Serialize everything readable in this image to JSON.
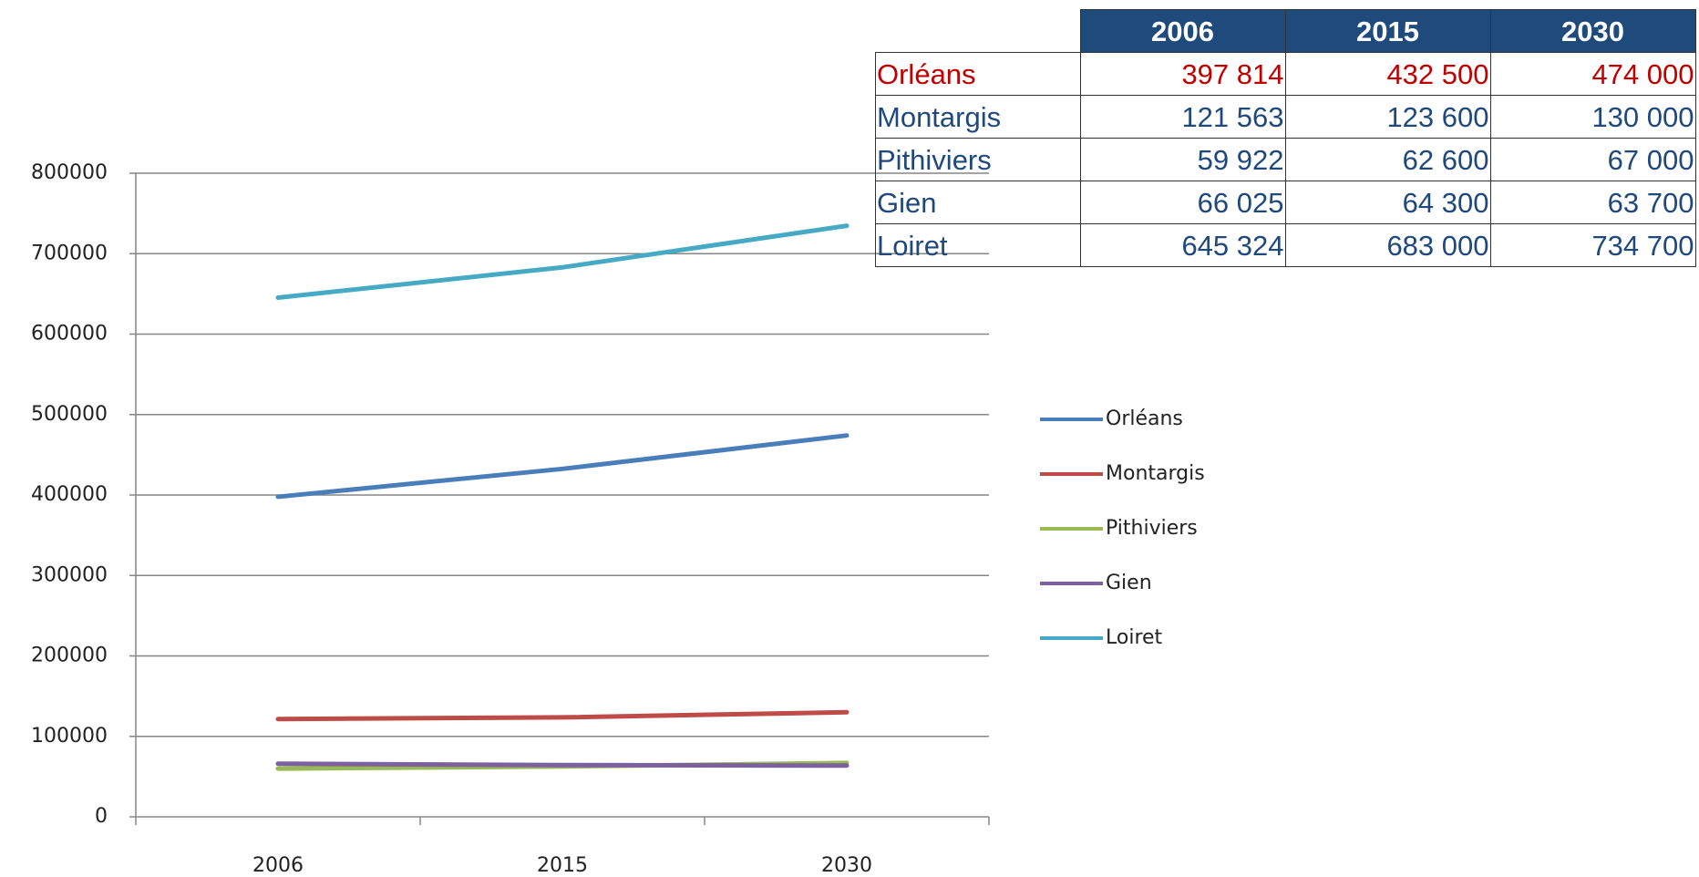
{
  "chart_data": {
    "type": "line",
    "categories": [
      "2006",
      "2015",
      "2030"
    ],
    "series": [
      {
        "name": "Orléans",
        "color": "#4a7ebb",
        "values": [
          397814,
          432500,
          474000
        ]
      },
      {
        "name": "Montargis",
        "color": "#be4b48",
        "values": [
          121563,
          123600,
          130000
        ]
      },
      {
        "name": "Pithiviers",
        "color": "#98b954",
        "values": [
          59922,
          62600,
          67000
        ]
      },
      {
        "name": "Gien",
        "color": "#7d60a0",
        "values": [
          66025,
          64300,
          63700
        ]
      },
      {
        "name": "Loiret",
        "color": "#46aac5",
        "values": [
          645324,
          683000,
          734700
        ]
      }
    ],
    "ylim": [
      0,
      800000
    ],
    "yticks": [
      0,
      100000,
      200000,
      300000,
      400000,
      500000,
      600000,
      700000,
      800000
    ],
    "grid": true,
    "legend": "right"
  },
  "table": {
    "header": [
      "2006",
      "2015",
      "2030"
    ],
    "rows": [
      [
        "Orléans",
        "397 814",
        "432 500",
        "474 000"
      ],
      [
        "Montargis",
        "121 563",
        "123 600",
        "130 000"
      ],
      [
        "Pithiviers",
        "59 922",
        "62 600",
        "67 000"
      ],
      [
        "Gien",
        "66 025",
        "64 300",
        "63 700"
      ],
      [
        "Loiret",
        "645 324",
        "683 000",
        "734 700"
      ]
    ]
  }
}
